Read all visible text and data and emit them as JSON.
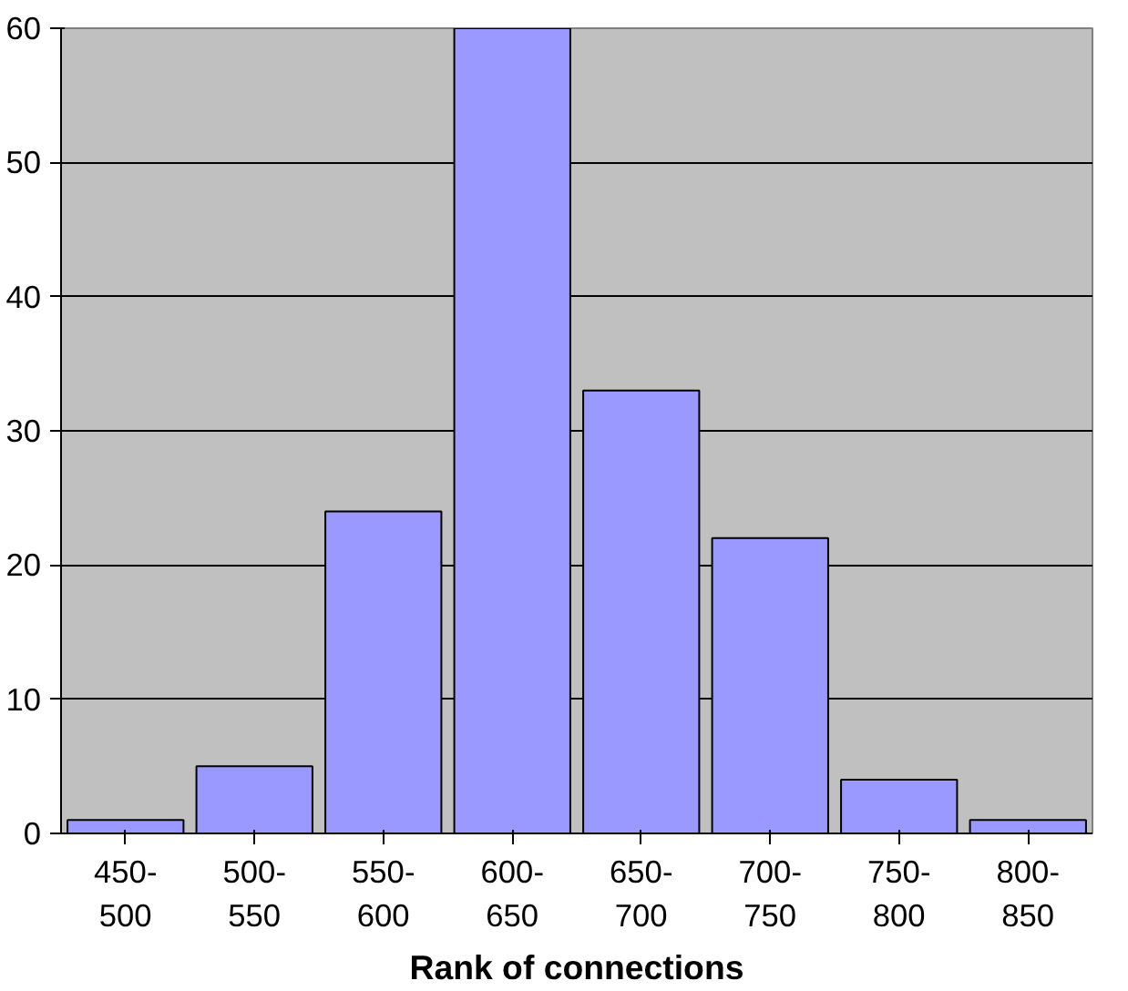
{
  "chart_data": {
    "type": "bar",
    "xlabel": "Rank of connections",
    "categories": [
      "450-\n500",
      "500-\n550",
      "550-\n600",
      "600-\n650",
      "650-\n700",
      "700-\n750",
      "750-\n800",
      "800-\n850"
    ],
    "values": [
      1,
      5,
      24,
      60,
      33,
      22,
      4,
      1
    ],
    "color": "#9999ff",
    "ylim": [
      0,
      60
    ],
    "yticks": [
      0,
      10,
      20,
      30,
      40,
      50,
      60
    ],
    "grid": "y"
  }
}
